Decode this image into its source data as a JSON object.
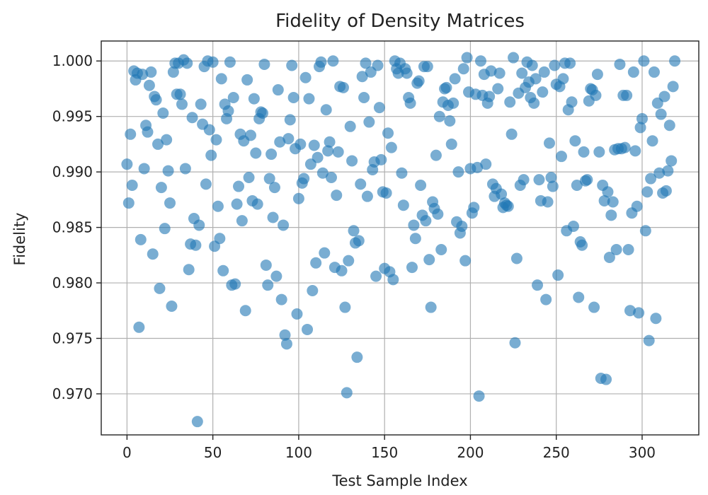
{
  "chart_data": {
    "type": "scatter",
    "title": "Fidelity of Density Matrices",
    "xlabel": "Test Sample Index",
    "ylabel": "Fidelity",
    "xlim": [
      -15,
      333
    ],
    "ylim": [
      0.9663,
      1.0018
    ],
    "xticks": [
      0,
      50,
      100,
      150,
      200,
      250,
      300
    ],
    "yticks": [
      0.97,
      0.975,
      0.98,
      0.985,
      0.99,
      0.995,
      1.0
    ],
    "xtick_labels": [
      "0",
      "50",
      "100",
      "150",
      "200",
      "250",
      "300"
    ],
    "ytick_labels": [
      "0.970",
      "0.975",
      "0.980",
      "0.985",
      "0.990",
      "0.995",
      "1.000"
    ],
    "grid": true,
    "marker_color": "#1f77b4",
    "marker_alpha": 0.6,
    "series": [
      {
        "name": "Fidelity",
        "x": [
          0,
          1,
          2,
          3,
          4,
          5,
          6,
          7,
          8,
          9,
          10,
          11,
          12,
          13,
          14,
          15,
          16,
          17,
          18,
          19,
          20,
          21,
          22,
          23,
          24,
          25,
          26,
          27,
          28,
          29,
          30,
          31,
          32,
          33,
          34,
          35,
          36,
          37,
          38,
          39,
          40,
          41,
          42,
          43,
          44,
          45,
          46,
          47,
          48,
          49,
          50,
          51,
          52,
          53,
          54,
          55,
          56,
          57,
          58,
          59,
          60,
          61,
          62,
          63,
          64,
          65,
          66,
          67,
          68,
          69,
          70,
          71,
          72,
          73,
          74,
          75,
          76,
          77,
          78,
          79,
          80,
          81,
          82,
          83,
          84,
          85,
          86,
          87,
          88,
          89,
          90,
          91,
          92,
          93,
          94,
          95,
          96,
          97,
          98,
          99,
          100,
          101,
          102,
          103,
          104,
          105,
          106,
          107,
          108,
          109,
          110,
          111,
          112,
          113,
          114,
          115,
          116,
          117,
          118,
          119,
          120,
          121,
          122,
          123,
          124,
          125,
          126,
          127,
          128,
          129,
          130,
          131,
          132,
          133,
          134,
          135,
          136,
          137,
          138,
          139,
          140,
          141,
          142,
          143,
          144,
          145,
          146,
          147,
          148,
          149,
          150,
          151,
          152,
          153,
          154,
          155,
          156,
          157,
          158,
          159,
          160,
          161,
          162,
          163,
          164,
          165,
          166,
          167,
          168,
          169,
          170,
          171,
          172,
          173,
          174,
          175,
          176,
          177,
          178,
          179,
          180,
          181,
          182,
          183,
          184,
          185,
          186,
          187,
          188,
          189,
          190,
          191,
          192,
          193,
          194,
          195,
          196,
          197,
          198,
          199,
          200,
          201,
          202,
          203,
          204,
          205,
          206,
          207,
          208,
          209,
          210,
          211,
          212,
          213,
          214,
          215,
          216,
          217,
          218,
          219,
          220,
          221,
          222,
          223,
          224,
          225,
          226,
          227,
          228,
          229,
          230,
          231,
          232,
          233,
          234,
          235,
          236,
          237,
          238,
          239,
          240,
          241,
          242,
          243,
          244,
          245,
          246,
          247,
          248,
          249,
          250,
          251,
          252,
          253,
          254,
          255,
          256,
          257,
          258,
          259,
          260,
          261,
          262,
          263,
          264,
          265,
          266,
          267,
          268,
          269,
          270,
          271,
          272,
          273,
          274,
          275,
          276,
          277,
          278,
          279,
          280,
          281,
          282,
          283,
          284,
          285,
          286,
          287,
          288,
          289,
          290,
          291,
          292,
          293,
          294,
          295,
          296,
          297,
          298,
          299,
          300,
          301,
          302,
          303,
          304,
          305,
          306,
          307,
          308,
          309,
          310,
          311,
          312,
          313,
          314,
          315,
          316,
          317,
          318,
          319
        ],
        "y": [
          0.9907,
          0.9872,
          0.9934,
          0.9888,
          0.9991,
          0.9983,
          0.9989,
          0.976,
          0.9839,
          0.9988,
          0.9903,
          0.9942,
          0.9936,
          0.9978,
          0.999,
          0.9826,
          0.9968,
          0.9965,
          0.9925,
          0.9795,
          0.9886,
          0.9953,
          0.9849,
          0.9929,
          0.9901,
          0.9872,
          0.9779,
          0.999,
          0.9998,
          0.997,
          0.9998,
          0.997,
          0.9961,
          1.0001,
          0.9903,
          0.9998,
          0.9812,
          0.9835,
          0.9949,
          0.9858,
          0.9834,
          0.9675,
          0.9852,
          0.9961,
          0.9943,
          0.9995,
          0.9889,
          1.0,
          0.9938,
          0.9915,
          0.9999,
          0.9833,
          0.9929,
          0.9869,
          0.984,
          0.9984,
          0.9811,
          0.9961,
          0.9948,
          0.9955,
          0.9999,
          0.9798,
          0.9967,
          0.9799,
          0.9871,
          0.9887,
          0.9934,
          0.9856,
          0.9928,
          0.9775,
          0.9983,
          0.9895,
          0.9933,
          0.9874,
          0.9966,
          0.9917,
          0.9871,
          0.9948,
          0.9954,
          0.9953,
          0.9997,
          0.9816,
          0.9798,
          0.9894,
          0.9916,
          0.9859,
          0.9886,
          0.9806,
          0.9974,
          0.9927,
          0.9785,
          0.9852,
          0.9753,
          0.9745,
          0.993,
          0.9947,
          0.9996,
          0.9967,
          0.9921,
          0.9772,
          0.9876,
          0.9925,
          0.989,
          0.9894,
          0.9985,
          0.9758,
          0.9966,
          0.9907,
          0.9793,
          0.9924,
          0.9818,
          0.9913,
          0.9995,
          0.9999,
          0.9899,
          0.9827,
          0.9956,
          0.9919,
          0.9927,
          0.9895,
          1.0,
          0.9814,
          0.9879,
          0.9918,
          0.9977,
          0.9811,
          0.9976,
          0.9778,
          0.9701,
          0.982,
          0.9941,
          0.991,
          0.9847,
          0.9836,
          0.9733,
          0.9838,
          0.9889,
          0.9986,
          0.9967,
          0.9998,
          0.9878,
          0.9945,
          0.999,
          0.9902,
          0.9909,
          0.9806,
          0.9996,
          0.9958,
          0.9911,
          0.9882,
          0.9813,
          0.9881,
          0.9935,
          0.981,
          0.9922,
          0.9803,
          1.0,
          0.9993,
          0.9989,
          0.9998,
          0.9899,
          0.987,
          0.9993,
          0.9989,
          0.9967,
          0.9962,
          0.9814,
          0.9852,
          0.984,
          0.998,
          0.9982,
          0.9888,
          0.9861,
          0.9995,
          0.9856,
          0.9995,
          0.9821,
          0.9778,
          0.9873,
          0.9867,
          0.9915,
          0.9862,
          0.995,
          0.983,
          0.9963,
          0.9975,
          0.9976,
          0.996,
          0.9946,
          0.9925,
          0.9962,
          0.9984,
          0.9855,
          0.99,
          0.9845,
          0.9851,
          0.9993,
          0.982,
          1.0003,
          0.9972,
          0.9903,
          0.9863,
          0.9868,
          0.997,
          0.9904,
          0.9698,
          1.0,
          0.9969,
          0.9988,
          0.9907,
          0.9962,
          0.9968,
          0.9991,
          0.9889,
          0.9878,
          0.9885,
          0.9975,
          0.9989,
          0.988,
          0.9868,
          0.9872,
          0.987,
          0.9869,
          0.9963,
          0.9934,
          1.0003,
          0.9746,
          0.9822,
          0.9971,
          0.9888,
          0.9989,
          0.9893,
          0.9976,
          0.9999,
          0.9981,
          0.9967,
          0.9996,
          0.9962,
          0.9984,
          0.9798,
          0.9893,
          0.9874,
          0.9972,
          0.999,
          0.9785,
          0.9873,
          0.9926,
          0.9895,
          0.9887,
          0.9996,
          0.9979,
          0.9807,
          0.9977,
          0.9914,
          0.9984,
          0.9998,
          0.9847,
          0.9956,
          0.9998,
          0.9963,
          0.9851,
          0.9928,
          0.9888,
          0.9787,
          0.9837,
          0.9834,
          0.9918,
          0.9892,
          0.9893,
          0.9964,
          0.9975,
          0.9974,
          0.9778,
          0.9969,
          0.9988,
          0.9918,
          0.9714,
          0.9888,
          0.9874,
          0.9713,
          0.9882,
          0.9823,
          0.9861,
          0.9873,
          0.992,
          0.983,
          0.9921,
          0.9997,
          0.9921,
          0.9969,
          0.9922,
          0.9969,
          0.983,
          0.9775,
          0.9863,
          0.999,
          0.9919,
          0.9869,
          0.9773,
          0.994,
          0.9948,
          1.0,
          0.9847,
          0.9882,
          0.9748,
          0.9894,
          0.9928,
          0.999,
          0.9768,
          0.9962,
          0.9899,
          0.9952,
          0.9881,
          0.9968,
          0.9883,
          0.9901,
          0.9942,
          0.991,
          0.9977,
          1.0
        ]
      }
    ]
  }
}
